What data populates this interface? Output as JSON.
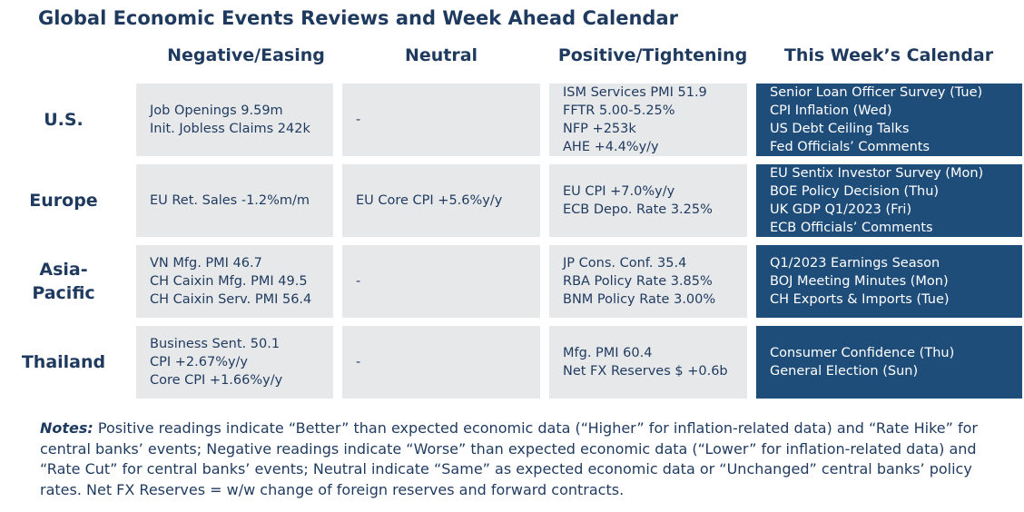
{
  "title": "Global Economic Events Reviews and Week Ahead Calendar",
  "columns": [
    "Negative/Easing",
    "Neutral",
    "Positive/Tightening",
    "This Week’s Calendar"
  ],
  "rows": [
    {
      "region": "U.S.",
      "negative": [
        "Job Openings 9.59m",
        "Init. Jobless Claims 242k"
      ],
      "neutral": [
        "-"
      ],
      "positive": [
        "ISM Services PMI 51.9",
        "FFTR 5.00-5.25%",
        "NFP +253k",
        "AHE +4.4%y/y"
      ],
      "calendar": [
        "Senior Loan Officer Survey (Tue)",
        "CPI Inflation (Wed)",
        "US Debt Ceiling Talks",
        "Fed Officials’ Comments"
      ]
    },
    {
      "region": "Europe",
      "negative": [
        "EU Ret. Sales -1.2%m/m"
      ],
      "neutral": [
        "EU Core CPI +5.6%y/y"
      ],
      "positive": [
        "EU CPI +7.0%y/y",
        "ECB Depo. Rate 3.25%"
      ],
      "calendar": [
        "EU Sentix Investor Survey (Mon)",
        "BOE Policy Decision (Thu)",
        "UK GDP Q1/2023 (Fri)",
        "ECB Officials’ Comments"
      ]
    },
    {
      "region": "Asia-Pacific",
      "negative": [
        "VN Mfg. PMI 46.7",
        "CH Caixin Mfg. PMI 49.5",
        "CH Caixin Serv. PMI 56.4"
      ],
      "neutral": [
        "-"
      ],
      "positive": [
        "JP Cons. Conf. 35.4",
        "RBA Policy Rate 3.85%",
        "BNM Policy Rate 3.00%"
      ],
      "calendar": [
        "Q1/2023 Earnings Season",
        "BOJ Meeting Minutes (Mon)",
        "CH Exports & Imports (Tue)"
      ]
    },
    {
      "region": "Thailand",
      "negative": [
        "Business Sent. 50.1",
        "CPI +2.67%y/y",
        "Core CPI +1.66%y/y"
      ],
      "neutral": [
        "-"
      ],
      "positive": [
        "Mfg. PMI 60.4",
        "Net FX Reserves $ +0.6b"
      ],
      "calendar": [
        "Consumer Confidence (Thu)",
        "General Election (Sun)"
      ]
    }
  ],
  "notes": {
    "label": "Notes:",
    "text": "Positive readings indicate “Better” than expected economic data (“Higher” for inflation-related data) and “Rate Hike” for central banks’ events; Negative readings indicate “Worse” than expected economic data (“Lower” for inflation-related data) and “Rate Cut” for central banks’ events; Neutral indicate “Same” as expected economic data or “Unchanged” central banks’ policy rates. Net FX Reserves = w/w change of foreign reserves and forward contracts."
  },
  "colors": {
    "text": "#1f3a5f",
    "cell_bg": "#e7e8ea",
    "calendar_bg": "#1f4d7a"
  }
}
